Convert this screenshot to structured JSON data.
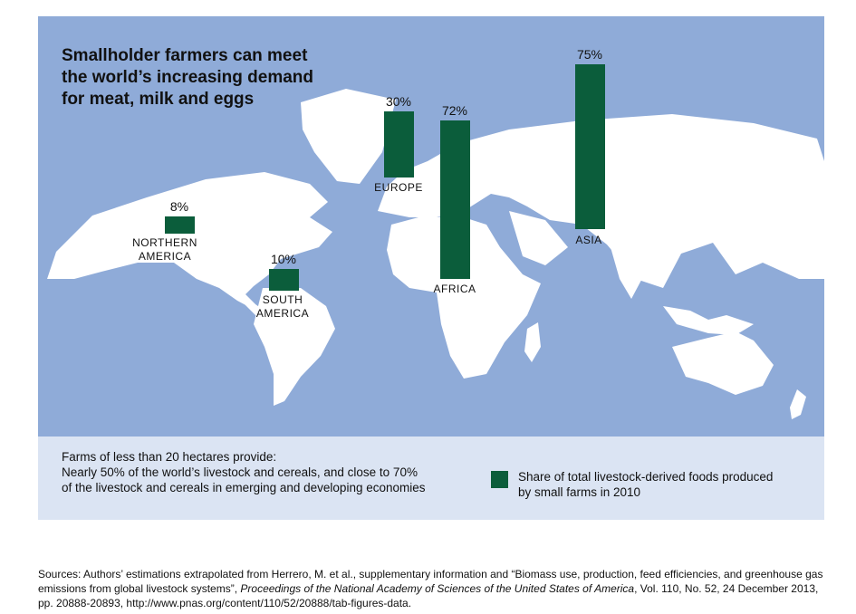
{
  "title": [
    "Smallholder farmers can meet",
    "the world’s increasing demand",
    "for meat, milk and eggs"
  ],
  "colors": {
    "ocean": "#8fabd8",
    "land": "#ffffff",
    "bar": "#0b5d3b",
    "info_panel": "#dbe4f3"
  },
  "chart_data": {
    "type": "bar",
    "categories": [
      "NORTHERN AMERICA",
      "SOUTH AMERICA",
      "EUROPE",
      "AFRICA",
      "ASIA"
    ],
    "values": [
      8,
      10,
      30,
      72,
      75
    ],
    "value_labels": [
      "8%",
      "10%",
      "30%",
      "72%",
      "75%"
    ],
    "unit": "%",
    "ylim": [
      0,
      100
    ]
  },
  "info": {
    "heading": "Farms of less than 20 hectares provide:",
    "line1": "Nearly 50% of the world’s livestock and cereals, and close to 70%",
    "line2": "of the livestock and cereals in emerging and developing economies"
  },
  "legend": {
    "label_line1": "Share of total livestock-derived foods produced",
    "label_line2": "by small farms in 2010"
  },
  "sources": {
    "part1": "Sources: Authors’ estimations extrapolated from Herrero, M. et al., supplementary information and “Biomass use, production, feed efficiencies, and greenhouse gas emissions from global livestock systems”, ",
    "journal": "Proceedings of the National Academy of Sciences of the United States of America",
    "part2": ", Vol. 110, No. 52, 24 December 2013, pp. 20888-20893, http://www.pnas.org/content/110/52/20888/tab-figures-data."
  }
}
